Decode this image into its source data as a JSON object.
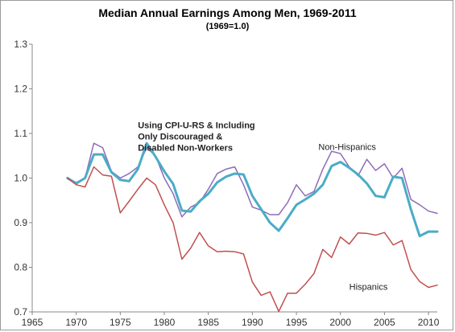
{
  "chart_data": {
    "type": "line",
    "title": "Median Annual Earnings Among Men, 1969-2011",
    "subtitle": "(1969=1.0)",
    "xlabel": "",
    "ylabel": "",
    "xlim": [
      1965,
      2011
    ],
    "ylim": [
      0.7,
      1.3
    ],
    "x_ticks": [
      "1965",
      "1970",
      "1975",
      "1980",
      "1985",
      "1990",
      "1995",
      "2000",
      "2005",
      "2010"
    ],
    "y_ticks": [
      "0.7",
      "0.8",
      "0.9",
      "1.0",
      "1.1",
      "1.2",
      "1.3"
    ],
    "x_tick_values": [
      1965,
      1970,
      1975,
      1980,
      1985,
      1990,
      1995,
      2000,
      2005,
      2010
    ],
    "y_tick_values": [
      0.7,
      0.8,
      0.9,
      1.0,
      1.1,
      1.2,
      1.3
    ],
    "grid": false,
    "x": [
      1969,
      1970,
      1971,
      1972,
      1973,
      1974,
      1975,
      1976,
      1977,
      1978,
      1979,
      1980,
      1981,
      1982,
      1983,
      1984,
      1985,
      1986,
      1987,
      1988,
      1989,
      1990,
      1991,
      1992,
      1993,
      1994,
      1995,
      1996,
      1997,
      1998,
      1999,
      2000,
      2001,
      2002,
      2003,
      2004,
      2005,
      2006,
      2007,
      2008,
      2009,
      2010,
      2011
    ],
    "series": [
      {
        "name": "Non-Hispanics",
        "color": "#8e6bb8",
        "width": 1.5,
        "values": [
          1.0,
          0.99,
          1.0,
          1.078,
          1.068,
          1.015,
          1.0,
          1.01,
          1.025,
          1.068,
          1.05,
          1.0,
          0.965,
          0.913,
          0.935,
          0.945,
          0.975,
          1.01,
          1.02,
          1.025,
          0.985,
          0.935,
          0.928,
          0.918,
          0.918,
          0.945,
          0.985,
          0.96,
          0.97,
          1.02,
          1.06,
          1.055,
          1.025,
          1.005,
          1.042,
          1.017,
          1.032,
          1.0,
          1.022,
          0.952,
          0.94,
          0.926,
          0.921
        ]
      },
      {
        "name": "Using CPI-U-RS & Including Only Discouraged & Disabled Non-Workers",
        "color": "#4bacc6",
        "width": 3,
        "values": [
          1.0,
          0.988,
          1.0,
          1.053,
          1.053,
          1.013,
          0.996,
          0.993,
          1.02,
          1.078,
          1.048,
          1.015,
          0.987,
          0.927,
          0.925,
          0.948,
          0.965,
          0.99,
          1.003,
          1.01,
          1.008,
          0.96,
          0.93,
          0.9,
          0.882,
          0.91,
          0.94,
          0.952,
          0.965,
          0.985,
          1.027,
          1.036,
          1.023,
          1.008,
          0.988,
          0.96,
          0.957,
          1.003,
          1.0,
          0.93,
          0.87,
          0.88,
          0.88
        ]
      },
      {
        "name": "Hispanics",
        "color": "#c0504d",
        "width": 1.5,
        "values": [
          1.0,
          0.985,
          0.98,
          1.025,
          1.007,
          1.004,
          0.922,
          0.948,
          0.975,
          1.0,
          0.985,
          0.94,
          0.9,
          0.818,
          0.843,
          0.878,
          0.848,
          0.835,
          0.836,
          0.835,
          0.83,
          0.767,
          0.737,
          0.745,
          0.701,
          0.742,
          0.742,
          0.762,
          0.786,
          0.84,
          0.822,
          0.868,
          0.852,
          0.877,
          0.876,
          0.872,
          0.878,
          0.85,
          0.86,
          0.795,
          0.768,
          0.755,
          0.76
        ]
      }
    ],
    "annotations": [
      {
        "id": "cpi",
        "lines": [
          "Using CPI-U-RS & Including",
          "Only Discouraged &",
          "Disabled Non-Workers"
        ],
        "anchor_x": 1977,
        "anchor_y": 1.112,
        "bold": true
      },
      {
        "id": "nonhisp",
        "lines": [
          "Non-Hispanics"
        ],
        "anchor_x": 1997.5,
        "anchor_y": 1.063,
        "bold": false
      },
      {
        "id": "hisp",
        "lines": [
          "Hispanics"
        ],
        "anchor_x": 2001,
        "anchor_y": 0.75,
        "bold": false
      }
    ]
  }
}
